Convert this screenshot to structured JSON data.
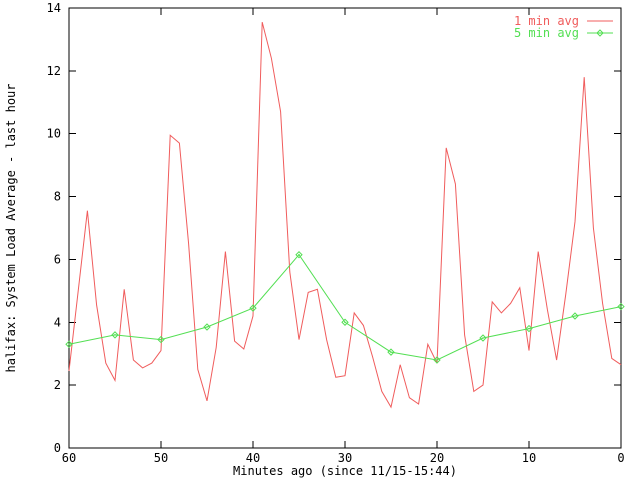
{
  "window": {
    "background": "#ffffff",
    "axis_color": "#000000"
  },
  "chart_data": {
    "type": "line",
    "title": "",
    "ylabel": "halifax: System Load Average - last hour",
    "xlabel": "Minutes ago (since 11/15-15:44)",
    "xlim": [
      60,
      0
    ],
    "ylim": [
      0,
      14
    ],
    "x_ticks": [
      60,
      50,
      40,
      30,
      20,
      10,
      0
    ],
    "y_ticks": [
      0,
      2,
      4,
      6,
      8,
      10,
      12,
      14
    ],
    "grid": false,
    "legend_position": "top-right-inside",
    "series": [
      {
        "name": "1 min avg",
        "color": "#f05c5c",
        "marker": "none",
        "x": [
          60,
          59,
          58,
          57,
          56,
          55,
          54,
          53,
          52,
          51,
          50,
          49,
          48,
          47,
          46,
          45,
          44,
          43,
          42,
          41,
          40,
          39,
          38,
          37,
          36,
          35,
          34,
          33,
          32,
          31,
          30,
          29,
          28,
          27,
          26,
          25,
          24,
          23,
          22,
          21,
          20,
          19,
          18,
          17,
          16,
          15,
          14,
          13,
          12,
          11,
          10,
          9,
          8,
          7,
          6,
          5,
          4,
          3,
          2,
          1,
          0
        ],
        "values": [
          2.45,
          5.0,
          7.55,
          4.55,
          2.7,
          2.15,
          5.05,
          2.8,
          2.55,
          2.7,
          3.1,
          9.95,
          9.7,
          6.5,
          2.5,
          1.5,
          3.2,
          6.25,
          3.4,
          3.15,
          4.2,
          13.55,
          12.4,
          10.7,
          5.6,
          3.45,
          4.95,
          5.05,
          3.45,
          2.25,
          2.3,
          4.3,
          3.9,
          2.9,
          1.8,
          1.3,
          2.65,
          1.6,
          1.4,
          3.3,
          2.7,
          9.55,
          8.4,
          3.6,
          1.8,
          2.0,
          4.65,
          4.3,
          4.6,
          5.1,
          3.1,
          6.25,
          4.4,
          2.8,
          4.9,
          7.2,
          11.8,
          7.0,
          4.6,
          2.85,
          2.65
        ]
      },
      {
        "name": "5 min avg",
        "color": "#53df53",
        "marker": "diamond",
        "x": [
          60,
          55,
          50,
          45,
          40,
          35,
          30,
          25,
          20,
          15,
          10,
          5,
          0
        ],
        "values": [
          3.3,
          3.6,
          3.45,
          3.85,
          4.45,
          6.15,
          4.0,
          3.05,
          2.8,
          3.5,
          3.8,
          4.2,
          4.5
        ]
      }
    ]
  }
}
